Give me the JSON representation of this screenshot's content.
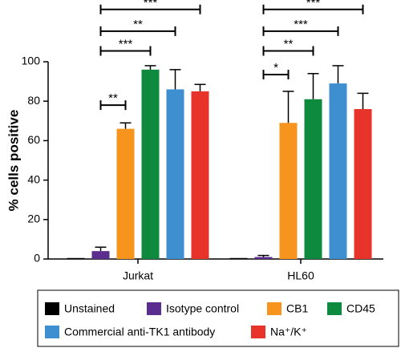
{
  "chart_data": {
    "type": "bar",
    "y_label": "% cells positive",
    "categories": [
      "Jurkat",
      "HL60"
    ],
    "series": [
      {
        "name": "Unstained",
        "color": "#000000",
        "values": [
          0.5,
          0.5
        ],
        "errors": [
          0,
          0
        ]
      },
      {
        "name": "Isotype control",
        "color": "#5b2d8e",
        "values": [
          4,
          1
        ],
        "errors": [
          2,
          0.8
        ]
      },
      {
        "name": "CB1",
        "color": "#f7941d",
        "values": [
          66,
          69
        ],
        "errors": [
          3,
          16
        ]
      },
      {
        "name": "CD45",
        "color": "#0e8a3e",
        "values": [
          96,
          81
        ],
        "errors": [
          2,
          13
        ]
      },
      {
        "name": "Commercial anti-TK1 antibody",
        "color": "#3e8fd0",
        "values": [
          86,
          89
        ],
        "errors": [
          10,
          9
        ]
      },
      {
        "name": "Na⁺/K⁺",
        "color": "#e8332a",
        "values": [
          85,
          76
        ],
        "errors": [
          3.5,
          8
        ]
      }
    ],
    "ylim": [
      0,
      100
    ],
    "yticks": [
      0,
      20,
      40,
      60,
      80,
      100
    ],
    "legend": "bottom",
    "annotations": [
      {
        "label": "**",
        "category": 0,
        "from": 1,
        "to": 2,
        "y": 78
      },
      {
        "label": "***",
        "category": 0,
        "from": 1,
        "to": 3,
        "y": 105.5
      },
      {
        "label": "**",
        "category": 0,
        "from": 1,
        "to": 4,
        "y": 115.5
      },
      {
        "label": "***",
        "category": 0,
        "from": 1,
        "to": 5,
        "y": 126.5
      },
      {
        "label": "*",
        "category": 1,
        "from": 1,
        "to": 2,
        "y": 93.5
      },
      {
        "label": "**",
        "category": 1,
        "from": 1,
        "to": 3,
        "y": 105.5
      },
      {
        "label": "***",
        "category": 1,
        "from": 1,
        "to": 4,
        "y": 115.5
      },
      {
        "label": "***",
        "category": 1,
        "from": 1,
        "to": 5,
        "y": 126.5
      }
    ]
  }
}
